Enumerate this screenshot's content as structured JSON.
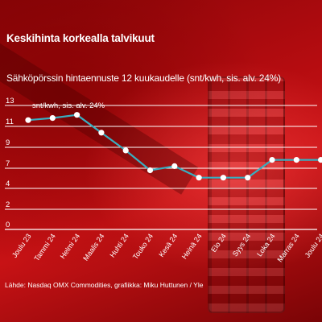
{
  "header": {
    "title": "Keskihinta korkealla talvikuut",
    "subtitle": "Sähköpörssin hintaennuste 12 kuukaudelle (snt/kwh, sis. alv. 24%)"
  },
  "footer": {
    "source": "Lähde: Nasdaq OMX Commodities, grafiikka: Miku Huttunen / Yle"
  },
  "colors": {
    "line": "#39aec0",
    "marker": "#ffffff",
    "grid": "#ffffff"
  },
  "chart_data": {
    "type": "line",
    "title": "Keskihinta korkealla talvikuut",
    "subtitle": "Sähköpörssin hintaennuste 12 kuukaudelle (snt/kwh, sis. alv. 24%)",
    "unit_label": "snt/kwh, sis. alv. 24%",
    "xlabel": "",
    "ylabel": "",
    "categories": [
      "Joulu 23",
      "Tammi 24",
      "Helmi 24",
      "Maalis 24",
      "Huhti 24",
      "Touko 24",
      "Kesä 24",
      "Heinä 24",
      "Elo 24",
      "Syys 24",
      "Loka 24",
      "Marras 24",
      "Joulu 24"
    ],
    "y_ticks": [
      0,
      2,
      4,
      7,
      9,
      11,
      13
    ],
    "series": [
      {
        "values": [
          11.6,
          11.8,
          12.1,
          10.4,
          8.7,
          6.7,
          7.2,
          5.6,
          5.6,
          5.6,
          7.8,
          7.8,
          7.8
        ]
      }
    ],
    "ylim": [
      0,
      13
    ],
    "grid": true,
    "legend": "none"
  }
}
